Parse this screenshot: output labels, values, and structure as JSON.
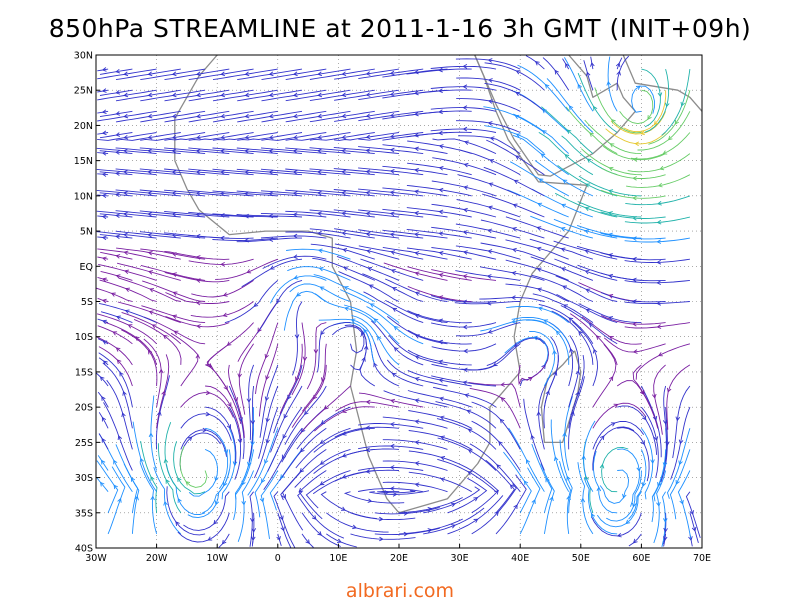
{
  "title": "850hPa STREAMLINE at 2011-1-16 3h GMT (INIT+09h)",
  "watermark": "albrari.com",
  "map": {
    "projection": "lat-lon",
    "lon_range": [
      -30,
      70
    ],
    "lat_range": [
      -40,
      30
    ],
    "x_ticks": [
      "30W",
      "20W",
      "10W",
      "0",
      "10E",
      "20E",
      "30E",
      "40E",
      "50E",
      "60E",
      "70E"
    ],
    "y_ticks": [
      "30N",
      "25N",
      "20N",
      "15N",
      "10N",
      "5N",
      "EQ",
      "5S",
      "10S",
      "15S",
      "20S",
      "25S",
      "30S",
      "35S",
      "40S"
    ],
    "grid": "dotted",
    "coastline_color": "#8c8c8c",
    "speed_colors": [
      "#7a1fa2",
      "#3333cc",
      "#1e90ff",
      "#20b2aa",
      "#66cc66",
      "#e6c830"
    ],
    "features": [
      {
        "type": "anticyclone",
        "name": "south-atlantic-high",
        "lon": -13,
        "lat": -30
      },
      {
        "type": "anticyclone",
        "name": "indian-ocean-high",
        "lon": 56,
        "lat": -31
      },
      {
        "type": "anticyclone",
        "name": "arabian-sea-high",
        "lon": 60,
        "lat": 22
      },
      {
        "type": "cyclone",
        "name": "congo-low",
        "lon": 5,
        "lat": -5
      },
      {
        "type": "cyclone",
        "name": "angola-low",
        "lon": 13,
        "lat": -10
      },
      {
        "type": "cyclone",
        "name": "mozambique-low",
        "lon": 43,
        "lat": -12
      }
    ]
  }
}
